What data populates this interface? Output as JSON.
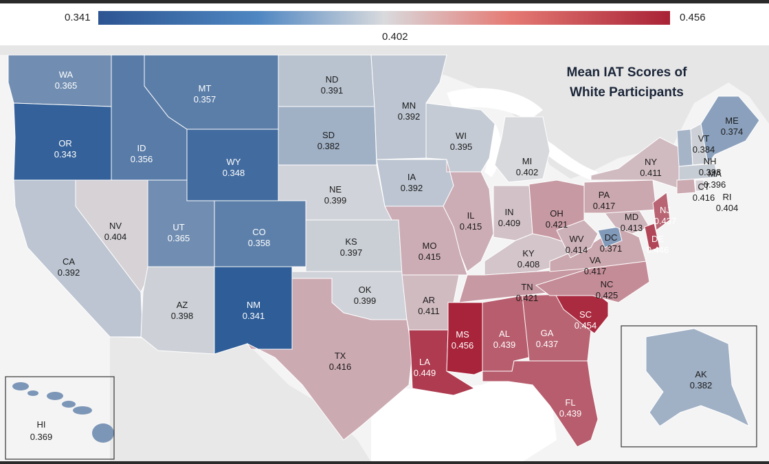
{
  "title": [
    "Mean IAT Scores of",
    "White Participants"
  ],
  "legend": {
    "min": "0.341",
    "mid": "0.402",
    "max": "0.456"
  },
  "colors": {
    "low": "#2e5d97",
    "mid": "#d8d9dc",
    "high": "#a8243a",
    "background_land": "#ececec",
    "water": "#ffffff"
  },
  "states": [
    {
      "code": "WA",
      "value": "0.365"
    },
    {
      "code": "OR",
      "value": "0.343"
    },
    {
      "code": "CA",
      "value": "0.392"
    },
    {
      "code": "ID",
      "value": "0.356"
    },
    {
      "code": "NV",
      "value": "0.404"
    },
    {
      "code": "MT",
      "value": "0.357"
    },
    {
      "code": "WY",
      "value": "0.348"
    },
    {
      "code": "UT",
      "value": "0.365"
    },
    {
      "code": "AZ",
      "value": "0.398"
    },
    {
      "code": "CO",
      "value": "0.358"
    },
    {
      "code": "NM",
      "value": "0.341"
    },
    {
      "code": "ND",
      "value": "0.391"
    },
    {
      "code": "SD",
      "value": "0.382"
    },
    {
      "code": "NE",
      "value": "0.399"
    },
    {
      "code": "KS",
      "value": "0.397"
    },
    {
      "code": "OK",
      "value": "0.399"
    },
    {
      "code": "TX",
      "value": "0.416"
    },
    {
      "code": "MN",
      "value": "0.392"
    },
    {
      "code": "IA",
      "value": "0.392"
    },
    {
      "code": "MO",
      "value": "0.415"
    },
    {
      "code": "AR",
      "value": "0.411"
    },
    {
      "code": "LA",
      "value": "0.449"
    },
    {
      "code": "WI",
      "value": "0.395"
    },
    {
      "code": "IL",
      "value": "0.415"
    },
    {
      "code": "MS",
      "value": "0.456"
    },
    {
      "code": "MI",
      "value": "0.402"
    },
    {
      "code": "IN",
      "value": "0.409"
    },
    {
      "code": "KY",
      "value": "0.408"
    },
    {
      "code": "TN",
      "value": "0.421"
    },
    {
      "code": "AL",
      "value": "0.439"
    },
    {
      "code": "OH",
      "value": "0.421"
    },
    {
      "code": "GA",
      "value": "0.437"
    },
    {
      "code": "FL",
      "value": "0.439"
    },
    {
      "code": "SC",
      "value": "0.454"
    },
    {
      "code": "NC",
      "value": "0.425"
    },
    {
      "code": "VA",
      "value": "0.417"
    },
    {
      "code": "WV",
      "value": "0.414"
    },
    {
      "code": "DC",
      "value": "0.371"
    },
    {
      "code": "MD",
      "value": "0.413"
    },
    {
      "code": "DE",
      "value": "0.446"
    },
    {
      "code": "PA",
      "value": "0.417"
    },
    {
      "code": "NJ",
      "value": "0.437"
    },
    {
      "code": "NY",
      "value": "0.411"
    },
    {
      "code": "CT",
      "value": "0.416"
    },
    {
      "code": "RI",
      "value": "0.404"
    },
    {
      "code": "MA",
      "value": "0.396"
    },
    {
      "code": "VT",
      "value": "0.384"
    },
    {
      "code": "NH",
      "value": "0.398"
    },
    {
      "code": "ME",
      "value": "0.374"
    },
    {
      "code": "AK",
      "value": "0.382"
    },
    {
      "code": "HI",
      "value": "0.369"
    }
  ]
}
